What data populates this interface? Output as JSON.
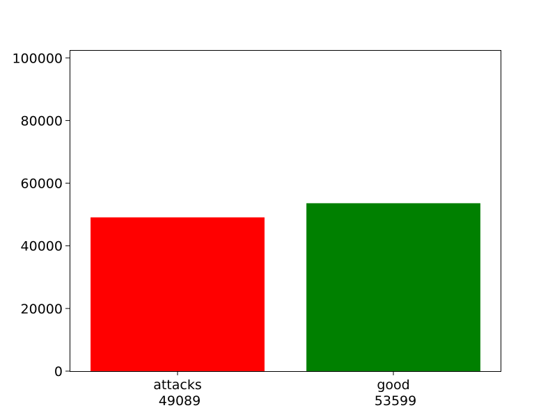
{
  "chart_data": {
    "type": "bar",
    "categories": [
      "attacks",
      "good"
    ],
    "values": [
      49089,
      53599
    ],
    "category_labels": [
      {
        "name": "attacks",
        "value_text": "49089"
      },
      {
        "name": "good",
        "value_text": "53599"
      }
    ],
    "colors": [
      "#ff0000",
      "#008000"
    ],
    "yticks": [
      0,
      20000,
      40000,
      60000,
      80000,
      100000
    ],
    "ytick_labels": [
      "0",
      "20000",
      "40000",
      "60000",
      "80000",
      "100000"
    ],
    "ylim": [
      0,
      102500
    ],
    "title": "",
    "xlabel": "",
    "ylabel": "",
    "grid": false,
    "legend": false
  }
}
